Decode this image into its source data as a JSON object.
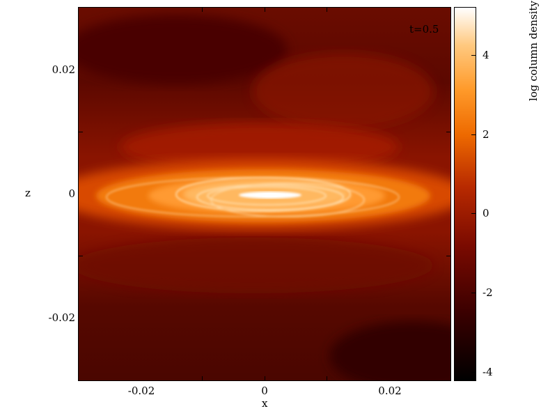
{
  "figure": {
    "time_label": "t=0.5",
    "xlabel": "x",
    "ylabel": "z",
    "x_ticks": [
      "-0.02",
      "0",
      "0.02"
    ],
    "y_ticks": [
      "0.02",
      "0",
      "-0.02"
    ],
    "colorbar": {
      "label": "log column density",
      "ticks": [
        "4",
        "2",
        "0",
        "-2",
        "-4"
      ]
    },
    "colormap_colors": [
      "#000000",
      "#3a0000",
      "#7a0a00",
      "#b82a00",
      "#ee6a00",
      "#ff9a2a",
      "#ffc980",
      "#ffffff"
    ]
  }
}
